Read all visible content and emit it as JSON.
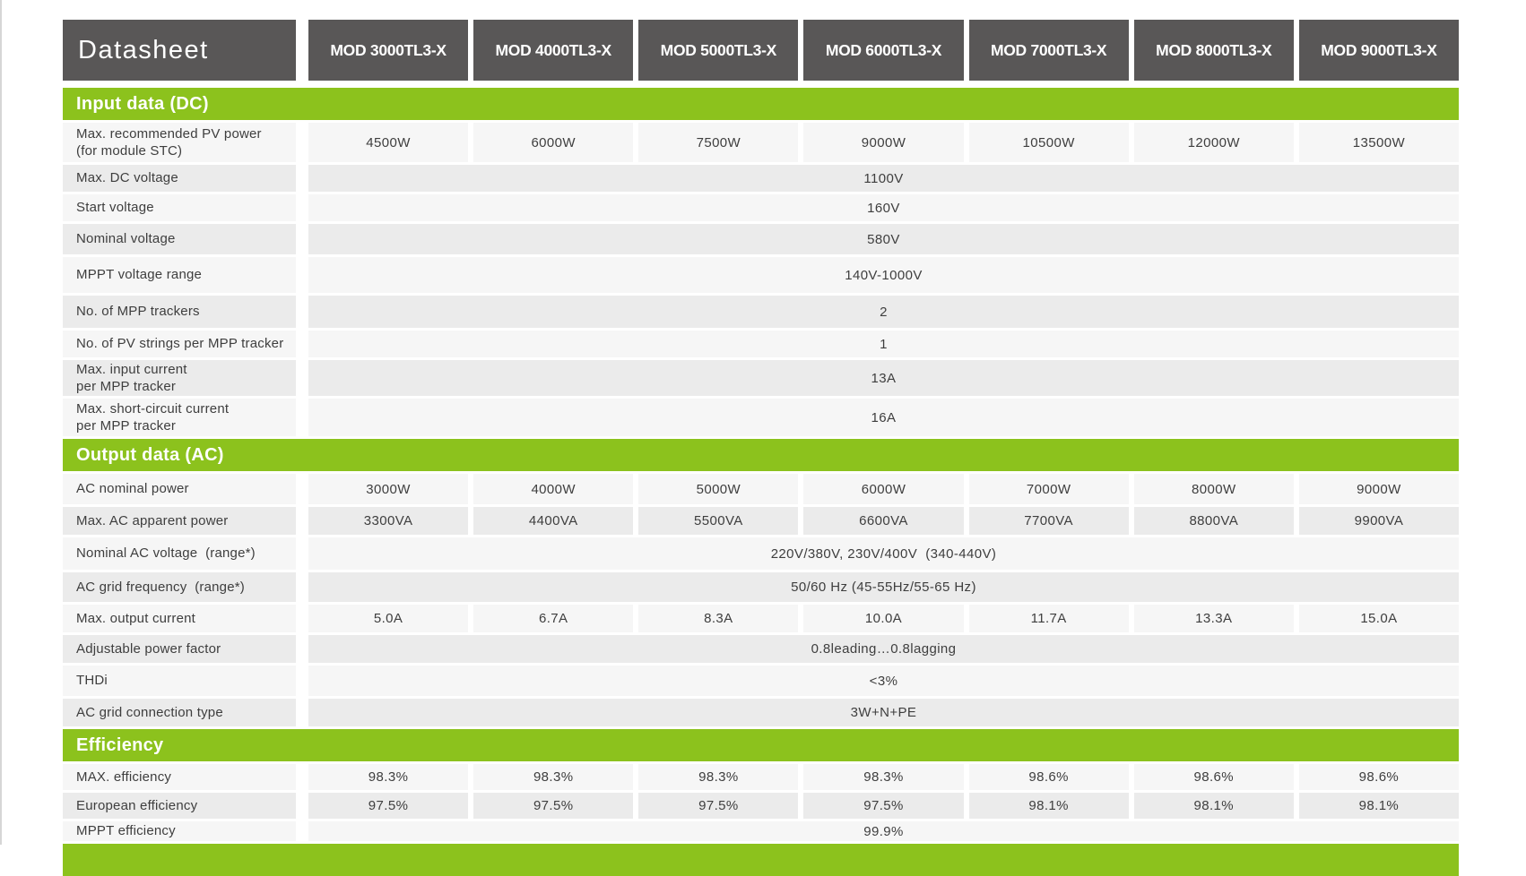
{
  "header": {
    "title": "Datasheet",
    "models": [
      "MOD 3000TL3-X",
      "MOD 4000TL3-X",
      "MOD 5000TL3-X",
      "MOD 6000TL3-X",
      "MOD 7000TL3-X",
      "MOD 8000TL3-X",
      "MOD 9000TL3-X"
    ]
  },
  "sections": [
    {
      "title": "Input data (DC)",
      "rows": [
        {
          "label": "Max. recommended PV power\n(for module STC)",
          "values": [
            "4500W",
            "6000W",
            "7500W",
            "9000W",
            "10500W",
            "12000W",
            "13500W"
          ]
        },
        {
          "label": "Max. DC voltage",
          "value": "1100V"
        },
        {
          "label": "Start voltage",
          "value": "160V"
        },
        {
          "label": "Nominal voltage",
          "value": "580V"
        },
        {
          "label": "MPPT voltage range",
          "value": "140V-1000V"
        },
        {
          "label": "No. of MPP trackers",
          "value": "2"
        },
        {
          "label": "No. of PV strings per MPP tracker",
          "value": "1"
        },
        {
          "label": "Max. input current\nper MPP tracker",
          "value": "13A"
        },
        {
          "label": "Max. short-circuit current\nper MPP tracker",
          "value": "16A"
        }
      ]
    },
    {
      "title": "Output data (AC)",
      "rows": [
        {
          "label": "AC nominal power",
          "values": [
            "3000W",
            "4000W",
            "5000W",
            "6000W",
            "7000W",
            "8000W",
            "9000W"
          ]
        },
        {
          "label": "Max. AC apparent power",
          "values": [
            "3300VA",
            "4400VA",
            "5500VA",
            "6600VA",
            "7700VA",
            "8800VA",
            "9900VA"
          ]
        },
        {
          "label": "Nominal AC voltage  (range*)",
          "value": "220V/380V, 230V/400V  (340-440V)"
        },
        {
          "label": "AC grid frequency  (range*)",
          "value": "50/60 Hz (45-55Hz/55-65 Hz)"
        },
        {
          "label": "Max. output current",
          "values": [
            "5.0A",
            "6.7A",
            "8.3A",
            "10.0A",
            "11.7A",
            "13.3A",
            "15.0A"
          ]
        },
        {
          "label": "Adjustable power factor",
          "value": "0.8leading…0.8lagging"
        },
        {
          "label": "THDi",
          "value": "<3%"
        },
        {
          "label": "AC grid connection type",
          "value": "3W+N+PE"
        }
      ]
    },
    {
      "title": "Efficiency",
      "rows": [
        {
          "label": "MAX. efficiency",
          "values": [
            "98.3%",
            "98.3%",
            "98.3%",
            "98.3%",
            "98.6%",
            "98.6%",
            "98.6%"
          ]
        },
        {
          "label": "European efficiency",
          "values": [
            "97.5%",
            "97.5%",
            "97.5%",
            "97.5%",
            "98.1%",
            "98.1%",
            "98.1%"
          ]
        },
        {
          "label": "MPPT efficiency",
          "value": "99.9%"
        }
      ]
    }
  ],
  "colors": {
    "accent_green": "#8cc21d",
    "header_gray": "#595757",
    "row_light": "#f6f6f6",
    "row_gray": "#ebebeb",
    "text": "#3e3e3e"
  }
}
